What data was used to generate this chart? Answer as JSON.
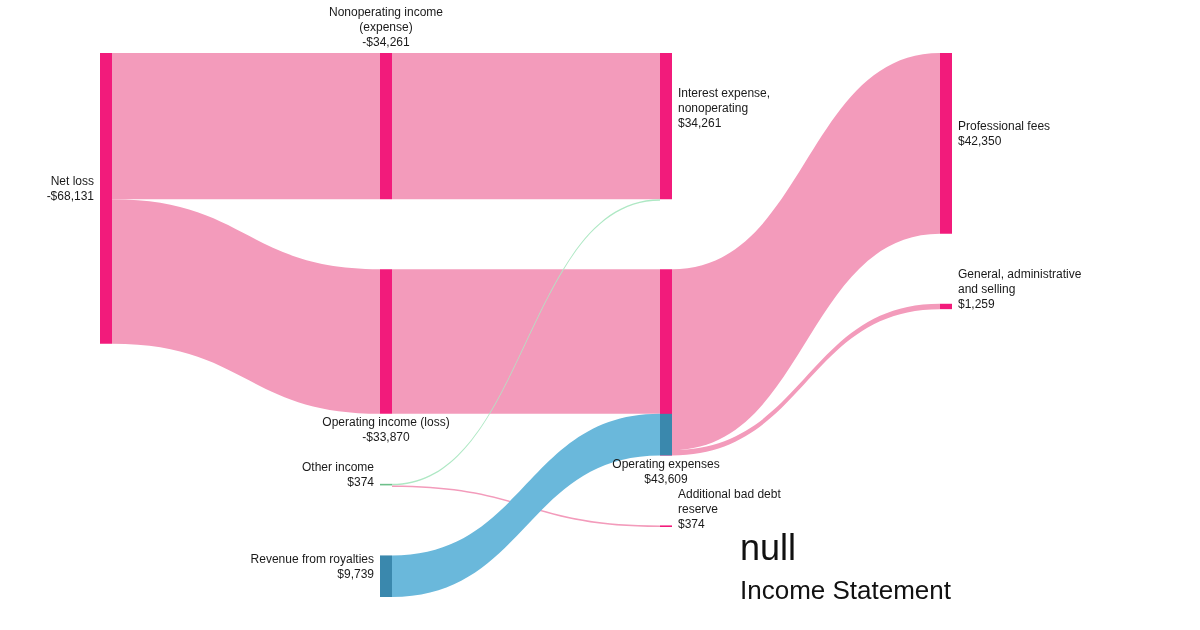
{
  "chart_data": {
    "type": "other",
    "title": "null",
    "subtitle": "Income Statement",
    "categories": [
      "Net loss",
      "Nonoperating income (expense)",
      "Operating income (loss)",
      "Other income",
      "Revenue from royalties",
      "Operating expenses",
      "Interest expense, nonoperating",
      "Additional bad debt reserve",
      "Professional fees",
      "General, administrative and selling"
    ],
    "values": [
      -68131,
      -34261,
      -33870,
      374,
      9739,
      43609,
      34261,
      374,
      42350,
      1259
    ],
    "value_labels": [
      "-$68,131",
      "-$34,261",
      "-$33,870",
      "$374",
      "$9,739",
      "$43,609",
      "$34,261",
      "$374",
      "$42,350",
      "$1,259"
    ],
    "colors": [
      "#f21b7b",
      "#f21b7b",
      "#f21b7b",
      "#6dbf8a",
      "#3a88ad",
      "#f21b7b",
      "#f21b7b",
      "#f21b7b",
      "#f21b7b",
      "#f21b7b"
    ],
    "series": [
      {
        "color": "#f39bbb",
        "values": [
          null,
          true,
          true,
          null,
          null,
          null,
          null,
          null,
          null,
          null
        ]
      },
      {
        "color": "#f39bbb",
        "values": [
          null,
          null,
          null,
          null,
          null,
          null,
          true,
          null,
          null,
          null
        ]
      },
      {
        "color": "#f39bbb",
        "values": [
          null,
          null,
          null,
          null,
          null,
          true,
          null,
          null,
          null,
          null
        ]
      },
      {
        "colors": [
          null,
          null,
          null,
          null,
          null,
          null,
          "#aee8c4",
          "#f39bbb",
          null,
          null
        ],
        "values": [
          null,
          null,
          null,
          null,
          null,
          null,
          true,
          true,
          null,
          null
        ]
      },
      {
        "color": "#6ab8db",
        "values": [
          null,
          null,
          null,
          null,
          null,
          true,
          null,
          null,
          null,
          null
        ]
      },
      {
        "color": "#f39bbb",
        "values": [
          null,
          null,
          null,
          null,
          null,
          null,
          null,
          null,
          true,
          true
        ]
      }
    ]
  }
}
